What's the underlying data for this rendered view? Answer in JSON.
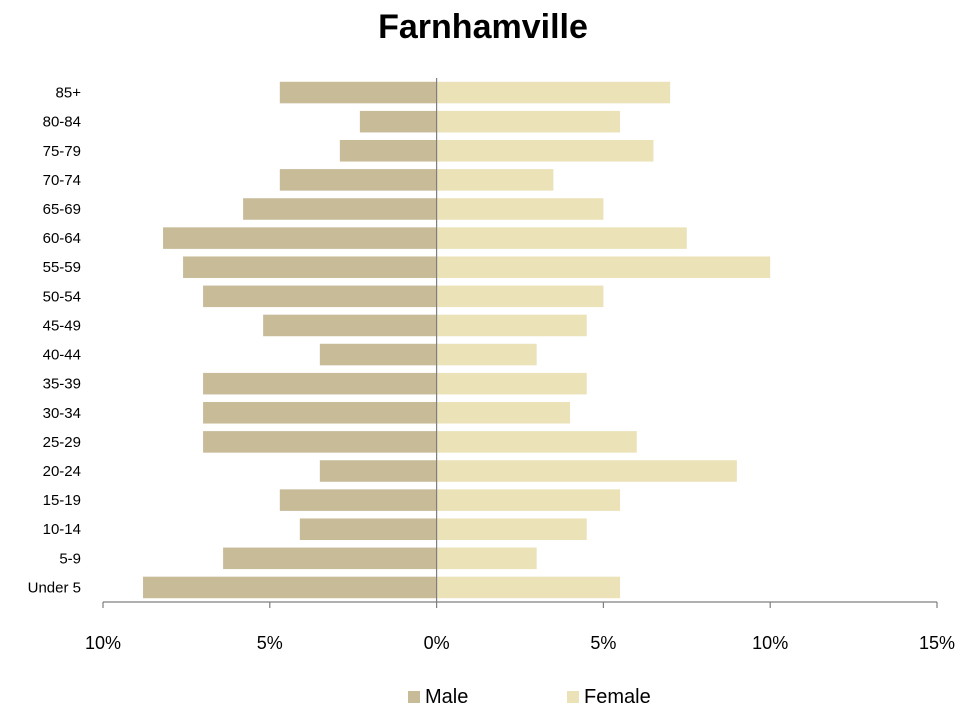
{
  "chart_data": {
    "type": "bar",
    "orientation": "horizontal",
    "title": "Farnhamville",
    "categories": [
      "85+",
      "80-84",
      "75-79",
      "70-74",
      "65-69",
      "60-64",
      "55-59",
      "50-54",
      "45-49",
      "40-44",
      "35-39",
      "30-34",
      "25-29",
      "20-24",
      "15-19",
      "10-14",
      "5-9",
      "Under 5"
    ],
    "series": [
      {
        "name": "Male",
        "color": "#c8bb98",
        "values": [
          4.7,
          2.3,
          2.9,
          4.7,
          5.8,
          8.2,
          7.6,
          7.0,
          5.2,
          3.5,
          7.0,
          7.0,
          7.0,
          3.5,
          4.7,
          4.1,
          6.4,
          8.8
        ]
      },
      {
        "name": "Female",
        "color": "#ebe2b7",
        "values": [
          7.0,
          5.5,
          6.5,
          3.5,
          5.0,
          7.5,
          10.0,
          5.0,
          4.5,
          3.0,
          4.5,
          4.0,
          6.0,
          9.0,
          5.5,
          4.5,
          3.0,
          5.5
        ]
      }
    ],
    "xlim": [
      -10,
      15
    ],
    "xticks": [
      -10,
      -5,
      0,
      5,
      10,
      15
    ],
    "xtick_labels": [
      "10%",
      "5%",
      "0%",
      "5%",
      "10%",
      "15%"
    ],
    "xlabel": "",
    "ylabel": "",
    "grid": false,
    "legend_position": "bottom"
  }
}
